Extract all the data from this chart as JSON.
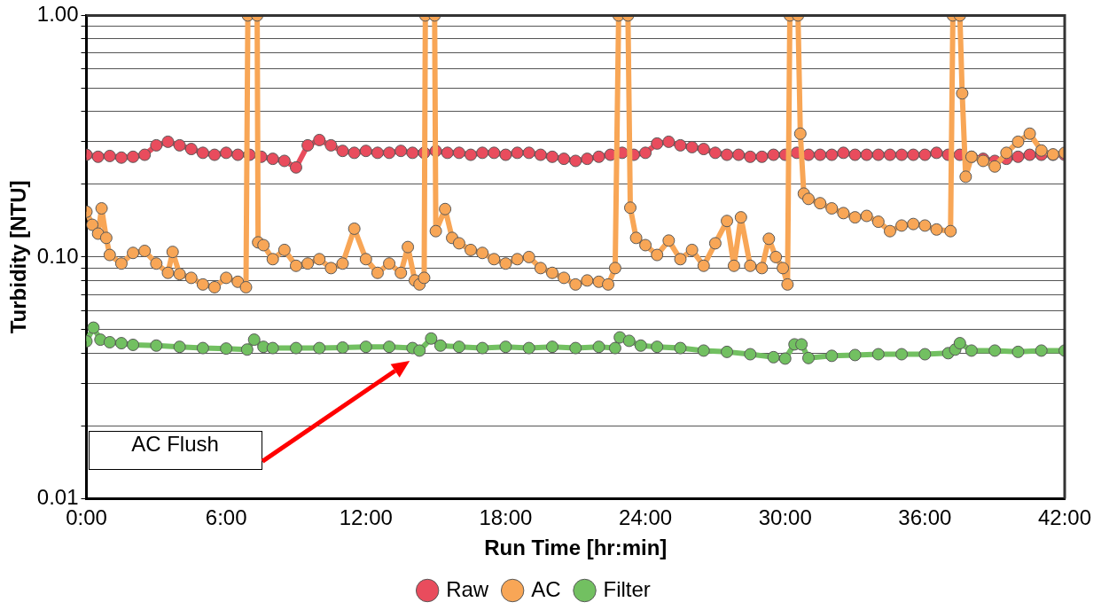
{
  "chart_data": {
    "type": "line",
    "xlabel": "Run Time [hr:min]",
    "ylabel": "Turbidity [NTU]",
    "log": "y",
    "grid": "y",
    "legend": "bottom",
    "marker": "circle",
    "line_style": "solid",
    "xlim": [
      0,
      42
    ],
    "xticks": [
      {
        "value": 0,
        "label": "0:00"
      },
      {
        "value": 6,
        "label": "6:00"
      },
      {
        "value": 12,
        "label": "12:00"
      },
      {
        "value": 18,
        "label": "18:00"
      },
      {
        "value": 24,
        "label": "24:00"
      },
      {
        "value": 30,
        "label": "30:00"
      },
      {
        "value": 36,
        "label": "36:00"
      },
      {
        "value": 42,
        "label": "42:00"
      }
    ],
    "ylim": [
      0.01,
      1
    ],
    "yticks": [
      {
        "value": 0.01,
        "label": "0.01"
      },
      {
        "value": 0.02,
        "label": null
      },
      {
        "value": 0.03,
        "label": null
      },
      {
        "value": 0.04,
        "label": null
      },
      {
        "value": 0.05,
        "label": null
      },
      {
        "value": 0.06,
        "label": null
      },
      {
        "value": 0.07,
        "label": null
      },
      {
        "value": 0.08,
        "label": null
      },
      {
        "value": 0.09,
        "label": null
      },
      {
        "value": 0.1,
        "label": "0.10"
      },
      {
        "value": 0.2,
        "label": null
      },
      {
        "value": 0.3,
        "label": null
      },
      {
        "value": 0.4,
        "label": null
      },
      {
        "value": 0.5,
        "label": null
      },
      {
        "value": 0.6,
        "label": null
      },
      {
        "value": 0.7,
        "label": null
      },
      {
        "value": 0.8,
        "label": null
      },
      {
        "value": 0.9,
        "label": null
      },
      {
        "value": 1,
        "label": "1.00"
      }
    ],
    "annotations": [
      "AC Flush"
    ],
    "series": [
      {
        "name": "Raw",
        "color": "#e94c5d",
        "x": [
          0,
          0.5,
          1,
          1.5,
          2,
          2.5,
          3,
          3.5,
          4,
          4.5,
          5,
          5.5,
          6,
          6.5,
          7,
          7.5,
          8,
          8.5,
          9,
          9.5,
          10,
          10.5,
          11,
          11.5,
          12,
          12.5,
          13,
          13.5,
          14,
          14.5,
          15,
          15.5,
          16,
          16.5,
          17,
          17.5,
          18,
          18.5,
          19,
          19.5,
          20,
          20.5,
          21,
          21.5,
          22,
          22.5,
          23,
          23.5,
          24,
          24.5,
          25,
          25.5,
          26,
          26.5,
          27,
          27.5,
          28,
          28.5,
          29,
          29.5,
          30,
          30.5,
          31,
          31.5,
          32,
          32.5,
          33,
          33.5,
          34,
          34.5,
          35,
          35.5,
          36,
          36.5,
          37,
          37.5,
          38,
          38.5,
          39,
          39.5,
          40,
          40.5,
          41,
          41.5,
          42
        ],
        "values": [
          0.265,
          0.26,
          0.262,
          0.258,
          0.26,
          0.265,
          0.29,
          0.3,
          0.29,
          0.28,
          0.27,
          0.265,
          0.27,
          0.265,
          0.265,
          0.26,
          0.255,
          0.25,
          0.235,
          0.29,
          0.305,
          0.29,
          0.275,
          0.27,
          0.275,
          0.27,
          0.27,
          0.275,
          0.27,
          0.27,
          0.275,
          0.27,
          0.27,
          0.265,
          0.27,
          0.27,
          0.265,
          0.27,
          0.27,
          0.265,
          0.26,
          0.255,
          0.25,
          0.255,
          0.26,
          0.265,
          0.27,
          0.265,
          0.27,
          0.295,
          0.3,
          0.29,
          0.285,
          0.28,
          0.27,
          0.265,
          0.265,
          0.26,
          0.26,
          0.265,
          0.265,
          0.27,
          0.265,
          0.265,
          0.265,
          0.27,
          0.265,
          0.265,
          0.265,
          0.265,
          0.265,
          0.265,
          0.265,
          0.27,
          0.265,
          0.265,
          0.26,
          0.255,
          0.25,
          0.255,
          0.26,
          0.265,
          0.265,
          0.265,
          0.265
        ]
      },
      {
        "name": "AC",
        "color": "#f8a656",
        "x": [
          0,
          0.25,
          0.5,
          0.65,
          0.85,
          1,
          1.5,
          2,
          2.5,
          3,
          3.5,
          3.7,
          4,
          4.5,
          5,
          5.5,
          6,
          6.5,
          6.85,
          6.93,
          7.33,
          7.37,
          7.6,
          8,
          8.5,
          9,
          9.5,
          10,
          10.5,
          11,
          11.5,
          12,
          12.5,
          13,
          13.5,
          13.8,
          14.1,
          14.3,
          14.5,
          14.55,
          14.95,
          15,
          15.4,
          15.7,
          16,
          16.5,
          17,
          17.5,
          18,
          18.5,
          19,
          19.5,
          20,
          20.5,
          21,
          21.5,
          22,
          22.4,
          22.7,
          22.85,
          23.25,
          23.35,
          23.6,
          24,
          24.5,
          25,
          25.5,
          26,
          26.5,
          27,
          27.5,
          27.8,
          28.1,
          28.5,
          29,
          29.3,
          29.6,
          29.9,
          30.1,
          30.2,
          30.55,
          30.65,
          30.8,
          31,
          31.5,
          32,
          32.5,
          33,
          33.5,
          34,
          34.5,
          35,
          35.5,
          36,
          36.5,
          37.1,
          37.2,
          37.5,
          37.6,
          37.75,
          38,
          38.5,
          39,
          39.5,
          40,
          40.5,
          41,
          41.5,
          42
        ],
        "values": [
          0.154,
          0.136,
          0.125,
          0.159,
          0.12,
          0.102,
          0.094,
          0.104,
          0.106,
          0.094,
          0.086,
          0.105,
          0.085,
          0.082,
          0.077,
          0.075,
          0.082,
          0.079,
          0.075,
          1,
          1,
          0.115,
          0.112,
          0.098,
          0.107,
          0.092,
          0.094,
          0.098,
          0.09,
          0.094,
          0.131,
          0.098,
          0.086,
          0.094,
          0.086,
          0.11,
          0.08,
          0.077,
          0.082,
          1,
          1,
          0.128,
          0.158,
          0.12,
          0.114,
          0.107,
          0.104,
          0.098,
          0.094,
          0.098,
          0.1,
          0.09,
          0.086,
          0.082,
          0.077,
          0.08,
          0.079,
          0.077,
          0.09,
          1,
          1,
          0.16,
          0.12,
          0.112,
          0.102,
          0.117,
          0.098,
          0.107,
          0.092,
          0.114,
          0.141,
          0.092,
          0.146,
          0.092,
          0.09,
          0.119,
          0.1,
          0.09,
          0.077,
          1,
          1,
          0.324,
          0.183,
          0.174,
          0.167,
          0.159,
          0.152,
          0.146,
          0.148,
          0.14,
          0.128,
          0.135,
          0.137,
          0.135,
          0.13,
          0.128,
          1,
          1,
          0.476,
          0.215,
          0.26,
          0.25,
          0.237,
          0.27,
          0.3,
          0.324,
          0.276,
          0.266,
          0.27
        ]
      },
      {
        "name": "Filter",
        "color": "#72c061",
        "x": [
          0,
          0.3,
          0.6,
          1,
          1.5,
          2,
          3,
          4,
          5,
          6,
          6.9,
          7.2,
          7.6,
          8,
          9,
          10,
          11,
          12,
          13,
          14,
          14.3,
          14.8,
          15.2,
          16,
          17,
          18,
          19,
          20,
          21,
          22,
          22.7,
          22.9,
          23.3,
          23.8,
          24.5,
          25.5,
          26.5,
          27.5,
          28.5,
          29.5,
          30,
          30.4,
          30.7,
          31,
          32,
          33,
          34,
          35,
          36,
          37,
          37.3,
          37.5,
          38,
          39,
          40,
          41,
          42
        ],
        "values": [
          0.0448,
          0.051,
          0.0455,
          0.0444,
          0.044,
          0.0433,
          0.043,
          0.0425,
          0.042,
          0.0418,
          0.0414,
          0.0455,
          0.0425,
          0.042,
          0.042,
          0.042,
          0.0422,
          0.0425,
          0.0425,
          0.042,
          0.041,
          0.046,
          0.043,
          0.0425,
          0.042,
          0.0425,
          0.042,
          0.0425,
          0.042,
          0.0425,
          0.042,
          0.0465,
          0.045,
          0.043,
          0.0425,
          0.042,
          0.041,
          0.0405,
          0.0396,
          0.0385,
          0.038,
          0.0435,
          0.0435,
          0.0382,
          0.039,
          0.0393,
          0.0396,
          0.0396,
          0.0396,
          0.04,
          0.0414,
          0.044,
          0.041,
          0.041,
          0.0405,
          0.041,
          0.041
        ]
      }
    ]
  }
}
